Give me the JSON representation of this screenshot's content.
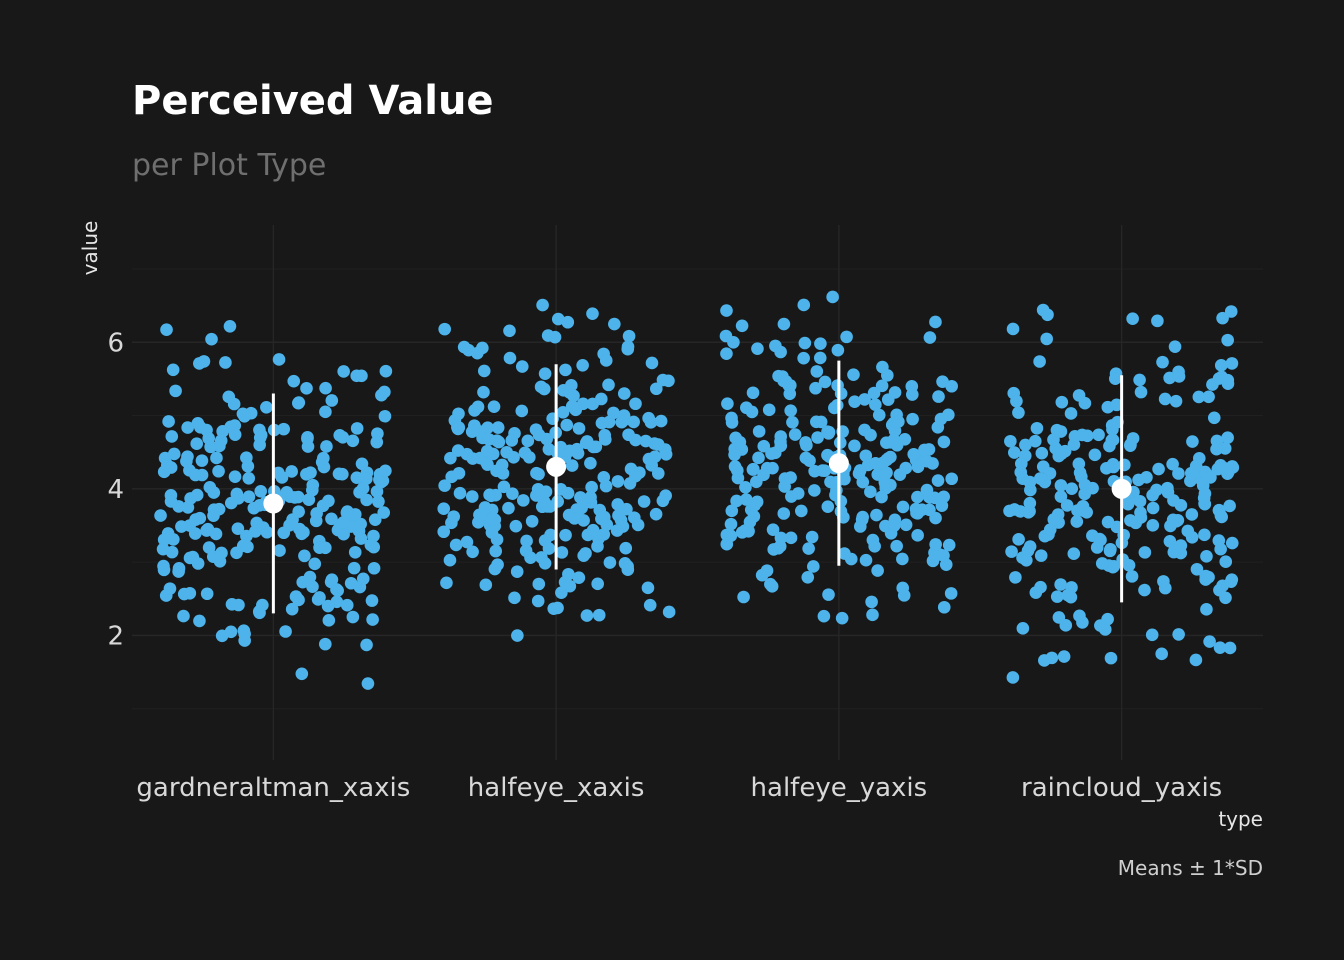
{
  "chart_data": {
    "type": "scatter",
    "title": "Perceived Value",
    "subtitle": "per Plot Type",
    "xlabel": "type",
    "ylabel": "value",
    "caption": "Means ± 1*SD",
    "categories": [
      "gardneraltman_xaxis",
      "halfeye_xaxis",
      "halfeye_yaxis",
      "raincloud_yaxis"
    ],
    "y_ticks": [
      2,
      4,
      6
    ],
    "ylim": [
      0.3,
      7.6
    ],
    "grid": true,
    "legend": "none",
    "point_color": "#4db3ea",
    "summary_color": "#ffffff",
    "background_color": "#181818",
    "points_per_category": 250,
    "summary": [
      {
        "category": "gardneraltman_xaxis",
        "mean": 3.8,
        "sd": 1.5
      },
      {
        "category": "halfeye_xaxis",
        "mean": 4.3,
        "sd": 1.4
      },
      {
        "category": "halfeye_yaxis",
        "mean": 4.35,
        "sd": 1.4
      },
      {
        "category": "raincloud_yaxis",
        "mean": 4.0,
        "sd": 1.55
      }
    ]
  }
}
